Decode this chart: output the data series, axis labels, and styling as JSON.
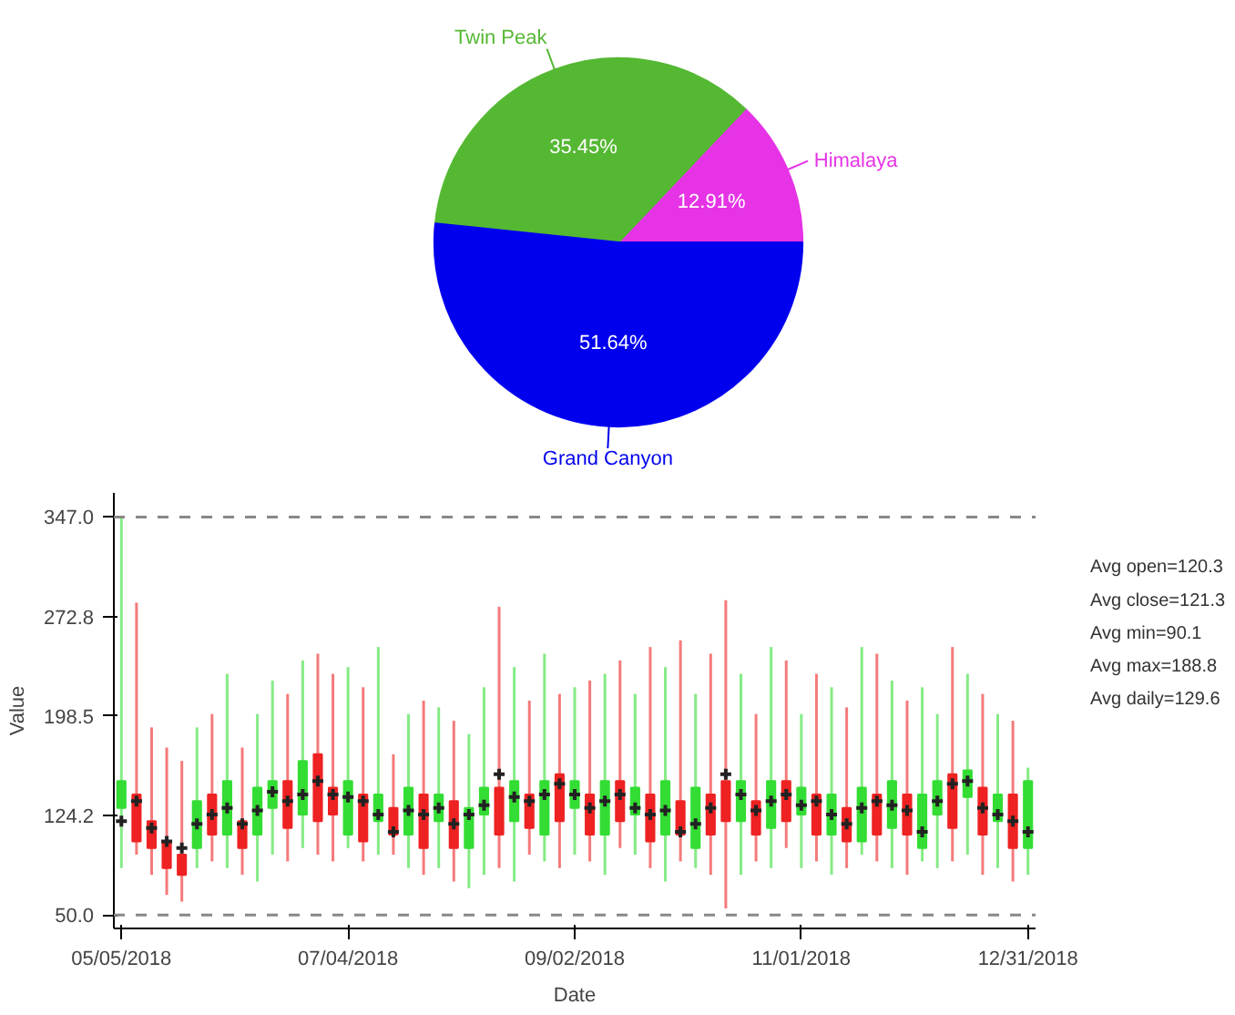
{
  "chart_data": [
    {
      "type": "pie",
      "categories": [
        "Himalaya",
        "Twin Peak",
        "Grand Canyon"
      ],
      "values": [
        12.91,
        35.45,
        51.64
      ],
      "colors": [
        "#e633e6",
        "#55b833",
        "#0000ee"
      ],
      "value_labels": [
        "12.91%",
        "35.45%",
        "51.64%"
      ]
    },
    {
      "type": "candlestick",
      "xlabel": "Date",
      "ylabel": "Value",
      "x": [
        "2018-05-05",
        "2018-05-09",
        "2018-05-13",
        "2018-05-17",
        "2018-05-21",
        "2018-05-25",
        "2018-05-29",
        "2018-06-02",
        "2018-06-06",
        "2018-06-10",
        "2018-06-14",
        "2018-06-18",
        "2018-06-22",
        "2018-06-26",
        "2018-06-30",
        "2018-07-04",
        "2018-07-08",
        "2018-07-12",
        "2018-07-16",
        "2018-07-20",
        "2018-07-24",
        "2018-07-28",
        "2018-08-01",
        "2018-08-05",
        "2018-08-09",
        "2018-08-13",
        "2018-08-17",
        "2018-08-21",
        "2018-08-25",
        "2018-08-29",
        "2018-09-02",
        "2018-09-06",
        "2018-09-10",
        "2018-09-14",
        "2018-09-18",
        "2018-09-22",
        "2018-09-26",
        "2018-09-30",
        "2018-10-04",
        "2018-10-08",
        "2018-10-12",
        "2018-10-16",
        "2018-10-20",
        "2018-10-24",
        "2018-10-28",
        "2018-11-01",
        "2018-11-05",
        "2018-11-09",
        "2018-11-13",
        "2018-11-17",
        "2018-11-21",
        "2018-11-25",
        "2018-11-29",
        "2018-12-03",
        "2018-12-07",
        "2018-12-11",
        "2018-12-15",
        "2018-12-19",
        "2018-12-23",
        "2018-12-27",
        "2018-12-31"
      ],
      "ohlc": [
        [
          130,
          347,
          85,
          150
        ],
        [
          140,
          283,
          95,
          105
        ],
        [
          120,
          190,
          80,
          100
        ],
        [
          105,
          175,
          65,
          85
        ],
        [
          95,
          165,
          60,
          80
        ],
        [
          100,
          190,
          85,
          135
        ],
        [
          140,
          200,
          90,
          110
        ],
        [
          110,
          230,
          85,
          150
        ],
        [
          120,
          175,
          80,
          100
        ],
        [
          110,
          200,
          75,
          145
        ],
        [
          130,
          225,
          95,
          150
        ],
        [
          150,
          215,
          90,
          115
        ],
        [
          125,
          240,
          100,
          165
        ],
        [
          170,
          245,
          95,
          120
        ],
        [
          145,
          230,
          90,
          125
        ],
        [
          110,
          235,
          100,
          150
        ],
        [
          140,
          220,
          90,
          105
        ],
        [
          120,
          250,
          95,
          140
        ],
        [
          130,
          170,
          95,
          110
        ],
        [
          110,
          200,
          85,
          145
        ],
        [
          140,
          210,
          80,
          100
        ],
        [
          120,
          205,
          85,
          140
        ],
        [
          135,
          195,
          75,
          100
        ],
        [
          100,
          185,
          70,
          130
        ],
        [
          125,
          220,
          80,
          145
        ],
        [
          145,
          280,
          85,
          110
        ],
        [
          120,
          235,
          75,
          150
        ],
        [
          140,
          210,
          95,
          115
        ],
        [
          110,
          245,
          90,
          150
        ],
        [
          155,
          215,
          85,
          120
        ],
        [
          130,
          220,
          95,
          150
        ],
        [
          140,
          225,
          90,
          110
        ],
        [
          110,
          230,
          80,
          150
        ],
        [
          150,
          240,
          100,
          120
        ],
        [
          125,
          215,
          95,
          145
        ],
        [
          140,
          250,
          85,
          105
        ],
        [
          110,
          235,
          75,
          150
        ],
        [
          135,
          255,
          90,
          110
        ],
        [
          100,
          215,
          85,
          145
        ],
        [
          140,
          245,
          80,
          110
        ],
        [
          150,
          285,
          55,
          120
        ],
        [
          120,
          230,
          80,
          150
        ],
        [
          135,
          200,
          90,
          110
        ],
        [
          115,
          250,
          85,
          150
        ],
        [
          150,
          240,
          100,
          120
        ],
        [
          125,
          200,
          85,
          145
        ],
        [
          140,
          230,
          90,
          110
        ],
        [
          110,
          220,
          80,
          140
        ],
        [
          130,
          205,
          85,
          105
        ],
        [
          105,
          250,
          95,
          145
        ],
        [
          140,
          245,
          90,
          110
        ],
        [
          115,
          225,
          85,
          150
        ],
        [
          140,
          210,
          80,
          110
        ],
        [
          100,
          220,
          90,
          140
        ],
        [
          125,
          200,
          85,
          150
        ],
        [
          155,
          250,
          90,
          115
        ],
        [
          138,
          230,
          95,
          158
        ],
        [
          145,
          215,
          80,
          110
        ],
        [
          120,
          200,
          85,
          140
        ],
        [
          140,
          195,
          75,
          100
        ],
        [
          100,
          160,
          80,
          150
        ]
      ],
      "colors": [
        "#33dd33",
        "#ee2222",
        "#ee2222",
        "#ee2222",
        "#ee2222",
        "#33dd33",
        "#ee2222",
        "#33dd33",
        "#ee2222",
        "#33dd33",
        "#33dd33",
        "#ee2222",
        "#33dd33",
        "#ee2222",
        "#ee2222",
        "#33dd33",
        "#ee2222",
        "#33dd33",
        "#ee2222",
        "#33dd33",
        "#ee2222",
        "#33dd33",
        "#ee2222",
        "#33dd33",
        "#33dd33",
        "#ee2222",
        "#33dd33",
        "#ee2222",
        "#33dd33",
        "#ee2222",
        "#33dd33",
        "#ee2222",
        "#33dd33",
        "#ee2222",
        "#33dd33",
        "#ee2222",
        "#33dd33",
        "#ee2222",
        "#33dd33",
        "#ee2222",
        "#ee2222",
        "#33dd33",
        "#ee2222",
        "#33dd33",
        "#ee2222",
        "#33dd33",
        "#ee2222",
        "#33dd33",
        "#ee2222",
        "#33dd33",
        "#ee2222",
        "#33dd33",
        "#ee2222",
        "#33dd33",
        "#33dd33",
        "#ee2222",
        "#33dd33",
        "#ee2222",
        "#33dd33",
        "#ee2222",
        "#33dd33"
      ],
      "series": [
        {
          "type": "scatter",
          "marker": "cross",
          "color": "#222222",
          "values": [
            120,
            135,
            115,
            105,
            100,
            118,
            125,
            130,
            118,
            128,
            142,
            135,
            140,
            150,
            140,
            138,
            135,
            125,
            112,
            128,
            125,
            130,
            118,
            125,
            132,
            155,
            138,
            135,
            140,
            148,
            140,
            130,
            135,
            140,
            130,
            125,
            128,
            112,
            118,
            130,
            155,
            140,
            128,
            135,
            140,
            132,
            135,
            125,
            118,
            130,
            135,
            132,
            128,
            112,
            135,
            148,
            150,
            130,
            125,
            120,
            112
          ]
        }
      ],
      "xlim": [
        "2018-05-03",
        "2019-01-02"
      ],
      "xticks": [
        {
          "value": "2018-05-05",
          "label": "05/05/2018"
        },
        {
          "value": "2018-07-04",
          "label": "07/04/2018"
        },
        {
          "value": "2018-09-02",
          "label": "09/02/2018"
        },
        {
          "value": "2018-11-01",
          "label": "11/01/2018"
        },
        {
          "value": "2018-12-31",
          "label": "12/31/2018"
        }
      ],
      "ylim": [
        40,
        365
      ],
      "yticks": [
        {
          "value": 50,
          "label": "50.0"
        },
        {
          "value": 124.2,
          "label": "124.2"
        },
        {
          "value": 198.5,
          "label": "198.5"
        },
        {
          "value": 272.8,
          "label": "272.8"
        },
        {
          "value": 347,
          "label": "347.0"
        }
      ],
      "ref_lines": [
        {
          "axis": "y",
          "value": 347,
          "line_style": "dashed",
          "color": "#888888"
        },
        {
          "axis": "y",
          "value": 50,
          "line_style": "dashed",
          "color": "#888888"
        }
      ],
      "annotations": [
        "Avg open=120.3",
        "Avg close=121.3",
        "Avg min=90.1",
        "Avg max=188.8",
        "Avg daily=129.6"
      ],
      "grid": false
    }
  ]
}
